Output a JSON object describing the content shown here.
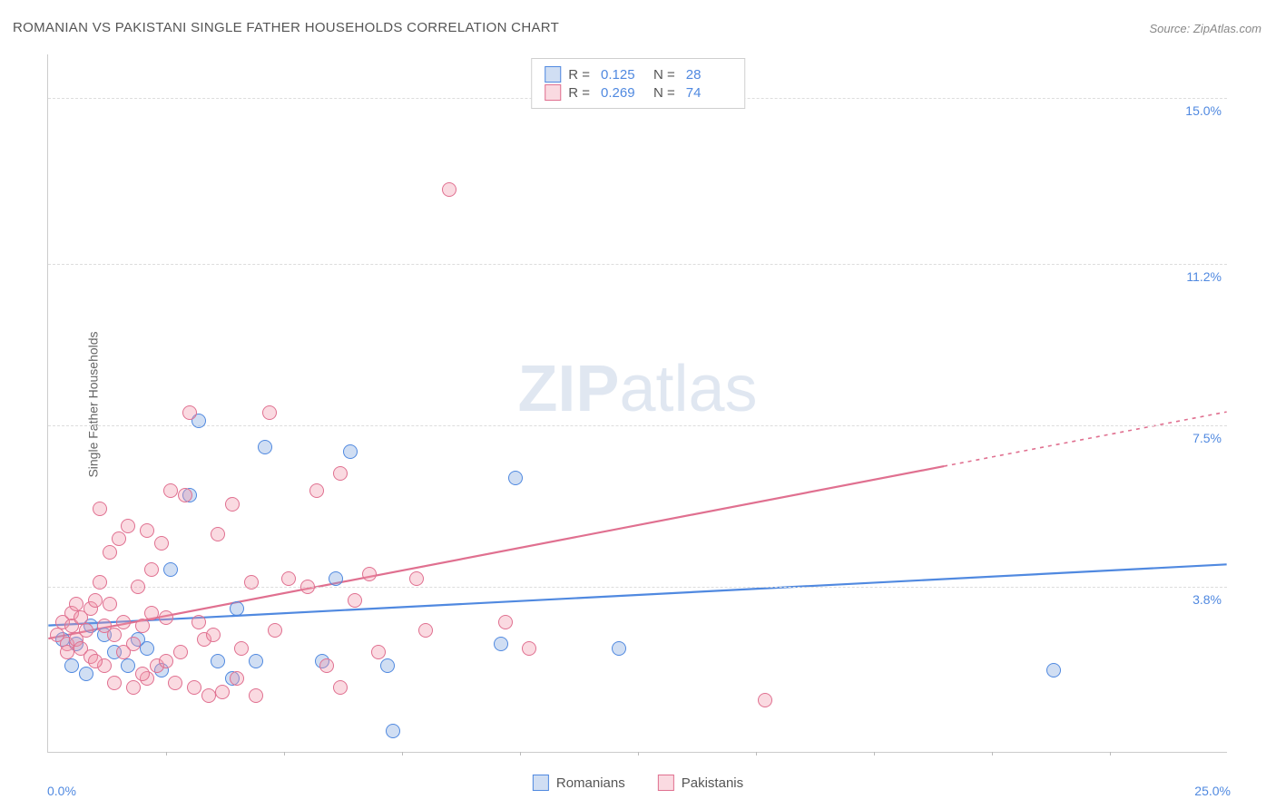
{
  "title": "ROMANIAN VS PAKISTANI SINGLE FATHER HOUSEHOLDS CORRELATION CHART",
  "source": "Source: ZipAtlas.com",
  "ylabel": "Single Father Households",
  "watermark_bold": "ZIP",
  "watermark_light": "atlas",
  "chart": {
    "type": "scatter",
    "xlim": [
      0,
      25
    ],
    "ylim": [
      0,
      16
    ],
    "x_label_min": "0.0%",
    "x_label_max": "25.0%",
    "y_ticks": [
      {
        "v": 3.8,
        "label": "3.8%"
      },
      {
        "v": 7.5,
        "label": "7.5%"
      },
      {
        "v": 11.2,
        "label": "11.2%"
      },
      {
        "v": 15.0,
        "label": "15.0%"
      }
    ],
    "x_ticks": [
      2.5,
      5,
      7.5,
      10,
      12.5,
      15,
      17.5,
      20,
      22.5
    ],
    "background_color": "#ffffff",
    "grid_color": "#dddddd",
    "axis_color": "#cccccc",
    "point_radius": 8,
    "colors": {
      "blue_fill": "rgba(120,160,220,0.35)",
      "blue_stroke": "#5089e0",
      "pink_fill": "rgba(240,150,170,0.35)",
      "pink_stroke": "#e07090",
      "value_text": "#5089e0",
      "label_text": "#555555"
    },
    "series": [
      {
        "name": "Romanians",
        "color": "blue",
        "R": "0.125",
        "N": "28",
        "regression": {
          "x1": 0,
          "y1": 2.9,
          "x2": 25,
          "y2": 4.3,
          "solid_until_x": 25
        },
        "points": [
          [
            0.3,
            2.6
          ],
          [
            0.5,
            2.0
          ],
          [
            0.6,
            2.5
          ],
          [
            0.9,
            2.9
          ],
          [
            0.8,
            1.8
          ],
          [
            1.2,
            2.7
          ],
          [
            1.4,
            2.3
          ],
          [
            1.7,
            2.0
          ],
          [
            1.9,
            2.6
          ],
          [
            2.1,
            2.4
          ],
          [
            2.4,
            1.9
          ],
          [
            2.6,
            4.2
          ],
          [
            3.0,
            5.9
          ],
          [
            3.2,
            7.6
          ],
          [
            3.6,
            2.1
          ],
          [
            3.9,
            1.7
          ],
          [
            4.0,
            3.3
          ],
          [
            4.4,
            2.1
          ],
          [
            4.6,
            7.0
          ],
          [
            5.8,
            2.1
          ],
          [
            6.1,
            4.0
          ],
          [
            6.4,
            6.9
          ],
          [
            7.3,
            0.5
          ],
          [
            7.2,
            2.0
          ],
          [
            9.6,
            2.5
          ],
          [
            9.9,
            6.3
          ],
          [
            12.1,
            2.4
          ],
          [
            21.3,
            1.9
          ]
        ]
      },
      {
        "name": "Pakistanis",
        "color": "pink",
        "R": "0.269",
        "N": "74",
        "regression": {
          "x1": 0,
          "y1": 2.6,
          "x2": 25,
          "y2": 7.8,
          "solid_until_x": 19
        },
        "points": [
          [
            0.2,
            2.7
          ],
          [
            0.3,
            3.0
          ],
          [
            0.4,
            2.5
          ],
          [
            0.5,
            2.9
          ],
          [
            0.5,
            3.2
          ],
          [
            0.6,
            2.6
          ],
          [
            0.7,
            2.4
          ],
          [
            0.7,
            3.1
          ],
          [
            0.8,
            2.8
          ],
          [
            0.9,
            3.3
          ],
          [
            0.9,
            2.2
          ],
          [
            1.0,
            3.5
          ],
          [
            1.1,
            5.6
          ],
          [
            1.2,
            2.9
          ],
          [
            1.2,
            2.0
          ],
          [
            1.3,
            3.4
          ],
          [
            1.4,
            1.6
          ],
          [
            1.4,
            2.7
          ],
          [
            1.5,
            4.9
          ],
          [
            1.6,
            3.0
          ],
          [
            1.7,
            5.2
          ],
          [
            1.8,
            2.5
          ],
          [
            1.8,
            1.5
          ],
          [
            1.9,
            3.8
          ],
          [
            2.0,
            2.9
          ],
          [
            2.1,
            5.1
          ],
          [
            2.1,
            1.7
          ],
          [
            2.2,
            3.2
          ],
          [
            2.3,
            2.0
          ],
          [
            2.4,
            4.8
          ],
          [
            2.5,
            3.1
          ],
          [
            2.6,
            6.0
          ],
          [
            2.7,
            1.6
          ],
          [
            2.8,
            2.3
          ],
          [
            2.9,
            5.9
          ],
          [
            3.0,
            7.8
          ],
          [
            3.1,
            1.5
          ],
          [
            3.2,
            3.0
          ],
          [
            3.3,
            2.6
          ],
          [
            3.4,
            1.3
          ],
          [
            3.6,
            5.0
          ],
          [
            3.7,
            1.4
          ],
          [
            3.9,
            5.7
          ],
          [
            4.1,
            2.4
          ],
          [
            4.3,
            3.9
          ],
          [
            4.4,
            1.3
          ],
          [
            4.7,
            7.8
          ],
          [
            4.8,
            2.8
          ],
          [
            5.1,
            4.0
          ],
          [
            5.5,
            3.8
          ],
          [
            5.7,
            6.0
          ],
          [
            5.9,
            2.0
          ],
          [
            6.2,
            1.5
          ],
          [
            6.2,
            6.4
          ],
          [
            6.5,
            3.5
          ],
          [
            6.8,
            4.1
          ],
          [
            7.0,
            2.3
          ],
          [
            7.8,
            4.0
          ],
          [
            8.0,
            2.8
          ],
          [
            8.5,
            12.9
          ],
          [
            9.7,
            3.0
          ],
          [
            10.2,
            2.4
          ],
          [
            15.2,
            1.2
          ],
          [
            0.4,
            2.3
          ],
          [
            0.6,
            3.4
          ],
          [
            1.0,
            2.1
          ],
          [
            1.1,
            3.9
          ],
          [
            1.3,
            4.6
          ],
          [
            1.6,
            2.3
          ],
          [
            2.0,
            1.8
          ],
          [
            2.2,
            4.2
          ],
          [
            2.5,
            2.1
          ],
          [
            3.5,
            2.7
          ],
          [
            4.0,
            1.7
          ]
        ]
      }
    ]
  },
  "bottom_legend": [
    "Romanians",
    "Pakistanis"
  ],
  "stat_legend": {
    "R_label": "R  =",
    "N_label": "N  ="
  }
}
